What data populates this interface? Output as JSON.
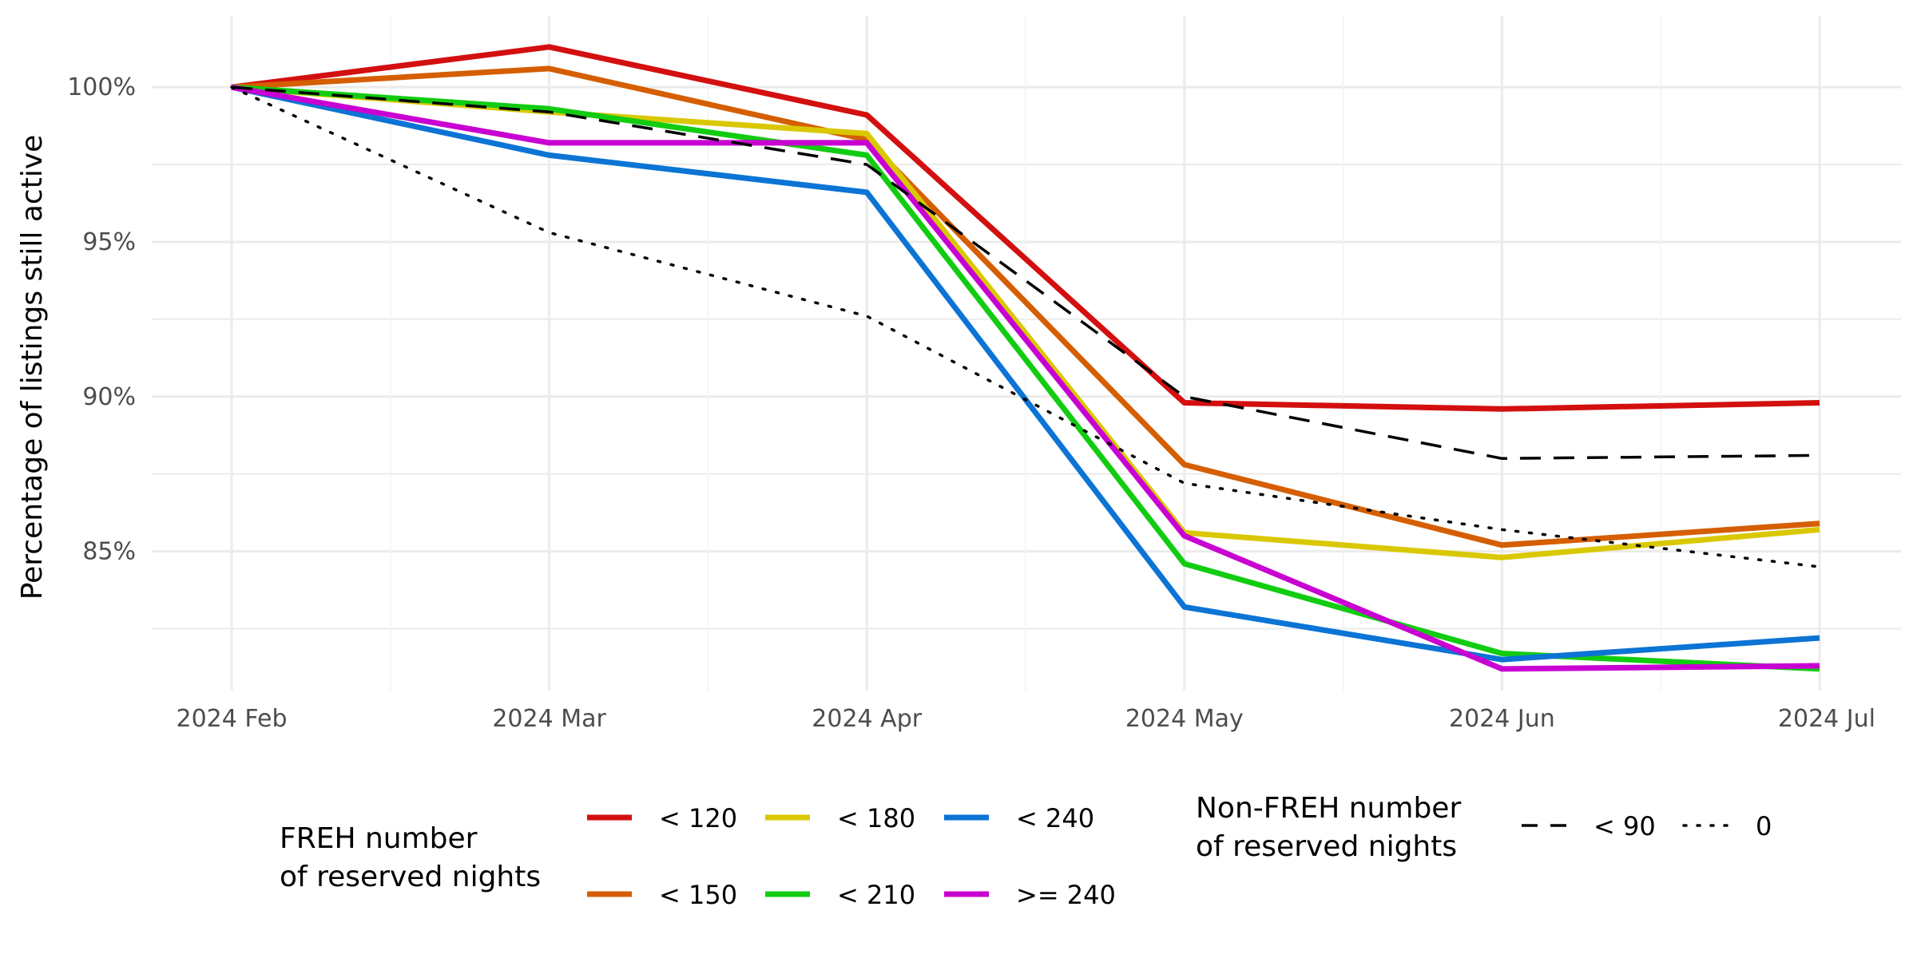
{
  "chart_data": {
    "type": "line",
    "title": "",
    "xlabel": "",
    "ylabel": "Percentage of listings still active",
    "categories": [
      "2024 Feb",
      "2024 Mar",
      "2024 Apr",
      "2024 May",
      "2024 Jun",
      "2024 Jul"
    ],
    "y_ticks": [
      "85%",
      "90%",
      "95%",
      "100%"
    ],
    "y_tick_values": [
      85,
      90,
      95,
      100
    ],
    "ylim": [
      80.5,
      102.3
    ],
    "grid": true,
    "legend_position": "bottom",
    "legend_groups": [
      {
        "title_lines": [
          "FREH number",
          "of reserved nights"
        ],
        "entries": [
          "< 120",
          "< 150",
          "< 180",
          "< 210",
          "< 240",
          ">= 240"
        ]
      },
      {
        "title_lines": [
          "Non-FREH number",
          "of reserved nights"
        ],
        "entries": [
          "< 90",
          "0"
        ]
      }
    ],
    "series": [
      {
        "name": "< 120",
        "group": "FREH",
        "color": "#D30F0F",
        "dash": "solid",
        "values": [
          100,
          101.3,
          99.1,
          89.8,
          89.6,
          89.8
        ]
      },
      {
        "name": "< 150",
        "group": "FREH",
        "color": "#D55E00",
        "dash": "solid",
        "values": [
          100,
          100.6,
          98.3,
          87.8,
          85.2,
          85.9
        ]
      },
      {
        "name": "< 180",
        "group": "FREH",
        "color": "#D9C800",
        "dash": "solid",
        "values": [
          100,
          99.2,
          98.5,
          85.6,
          84.8,
          85.7
        ]
      },
      {
        "name": "< 210",
        "group": "FREH",
        "color": "#11CC11",
        "dash": "solid",
        "values": [
          100,
          99.3,
          97.8,
          84.6,
          81.7,
          81.2
        ]
      },
      {
        "name": "< 240",
        "group": "FREH",
        "color": "#0B74D4",
        "dash": "solid",
        "values": [
          100,
          97.8,
          96.6,
          83.2,
          81.5,
          82.2
        ]
      },
      {
        "name": ">= 240",
        "group": "FREH",
        "color": "#C800D2",
        "dash": "solid",
        "values": [
          100,
          98.2,
          98.2,
          85.5,
          81.2,
          81.3
        ]
      },
      {
        "name": "< 90",
        "group": "Non-FREH",
        "color": "#000000",
        "dash": "dashed",
        "values": [
          100,
          99.2,
          97.5,
          90.0,
          88.0,
          88.1
        ]
      },
      {
        "name": "0",
        "group": "Non-FREH",
        "color": "#000000",
        "dash": "dotted",
        "values": [
          100,
          95.3,
          92.6,
          87.2,
          85.7,
          84.5
        ]
      }
    ]
  }
}
